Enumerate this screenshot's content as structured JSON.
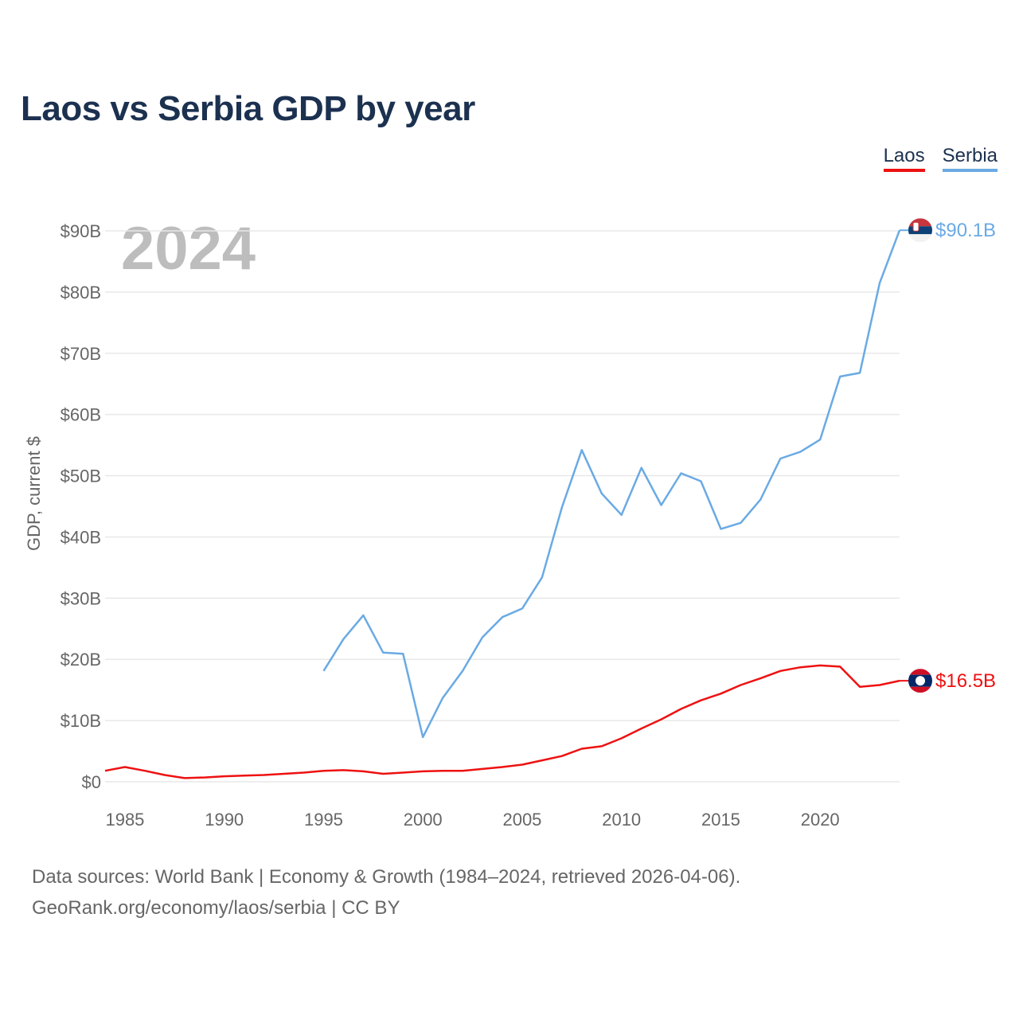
{
  "header": {
    "title": "Laos vs Serbia GDP by year"
  },
  "legend": {
    "items": [
      {
        "label": "Laos",
        "color": "#ee1111"
      },
      {
        "label": "Serbia",
        "color": "#6aaae4"
      }
    ]
  },
  "footer": {
    "line1": "Data sources: World Bank | Economy & Growth (1984–2024, retrieved 2026-04-06).",
    "line2": "GeoRank.org/economy/laos/serbia | CC BY"
  },
  "colors": {
    "grid": "#e8e8e8",
    "axis_text": "#666666",
    "year_watermark": "#bdbdbd"
  },
  "chart_data": {
    "type": "line",
    "title": "Laos vs Serbia GDP by year",
    "current_year_label": "2024",
    "xlabel": "",
    "ylabel": "GDP, current $",
    "xlim": [
      1984,
      2024
    ],
    "ylim": [
      0,
      90
    ],
    "x_ticks": [
      1985,
      1990,
      1995,
      2000,
      2005,
      2010,
      2015,
      2020
    ],
    "y_ticks": [
      {
        "value": 0,
        "label": "$0"
      },
      {
        "value": 10,
        "label": "$10B"
      },
      {
        "value": 20,
        "label": "$20B"
      },
      {
        "value": 30,
        "label": "$30B"
      },
      {
        "value": 40,
        "label": "$40B"
      },
      {
        "value": 50,
        "label": "$50B"
      },
      {
        "value": 60,
        "label": "$60B"
      },
      {
        "value": 70,
        "label": "$70B"
      },
      {
        "value": 80,
        "label": "$80B"
      },
      {
        "value": 90,
        "label": "$90B"
      }
    ],
    "series": [
      {
        "name": "Laos",
        "color": "#ee1111",
        "end_label": "$16.5B",
        "x": [
          1984,
          1985,
          1986,
          1987,
          1988,
          1989,
          1990,
          1991,
          1992,
          1993,
          1994,
          1995,
          1996,
          1997,
          1998,
          1999,
          2000,
          2001,
          2002,
          2003,
          2004,
          2005,
          2006,
          2007,
          2008,
          2009,
          2010,
          2011,
          2012,
          2013,
          2014,
          2015,
          2016,
          2017,
          2018,
          2019,
          2020,
          2021,
          2022,
          2023,
          2024
        ],
        "values": [
          1.8,
          2.4,
          1.8,
          1.1,
          0.6,
          0.7,
          0.9,
          1.0,
          1.1,
          1.3,
          1.5,
          1.8,
          1.9,
          1.7,
          1.3,
          1.5,
          1.7,
          1.8,
          1.8,
          2.1,
          2.4,
          2.8,
          3.5,
          4.2,
          5.4,
          5.8,
          7.1,
          8.7,
          10.2,
          11.9,
          13.3,
          14.4,
          15.8,
          16.9,
          18.1,
          18.7,
          19.0,
          18.8,
          15.5,
          15.8,
          16.5
        ]
      },
      {
        "name": "Serbia",
        "color": "#6aaae4",
        "end_label": "$90.1B",
        "x": [
          1995,
          1996,
          1997,
          1998,
          1999,
          2000,
          2001,
          2002,
          2003,
          2004,
          2005,
          2006,
          2007,
          2008,
          2009,
          2010,
          2011,
          2012,
          2013,
          2014,
          2015,
          2016,
          2017,
          2018,
          2019,
          2020,
          2021,
          2022,
          2023,
          2024
        ],
        "values": [
          18.1,
          23.3,
          27.2,
          21.1,
          20.9,
          7.3,
          13.7,
          18.1,
          23.6,
          26.9,
          28.3,
          33.4,
          44.8,
          54.2,
          47.1,
          43.6,
          51.3,
          45.2,
          50.4,
          49.1,
          41.3,
          42.3,
          46.1,
          52.8,
          53.9,
          55.9,
          66.2,
          66.8,
          81.5,
          90.1
        ]
      }
    ]
  }
}
